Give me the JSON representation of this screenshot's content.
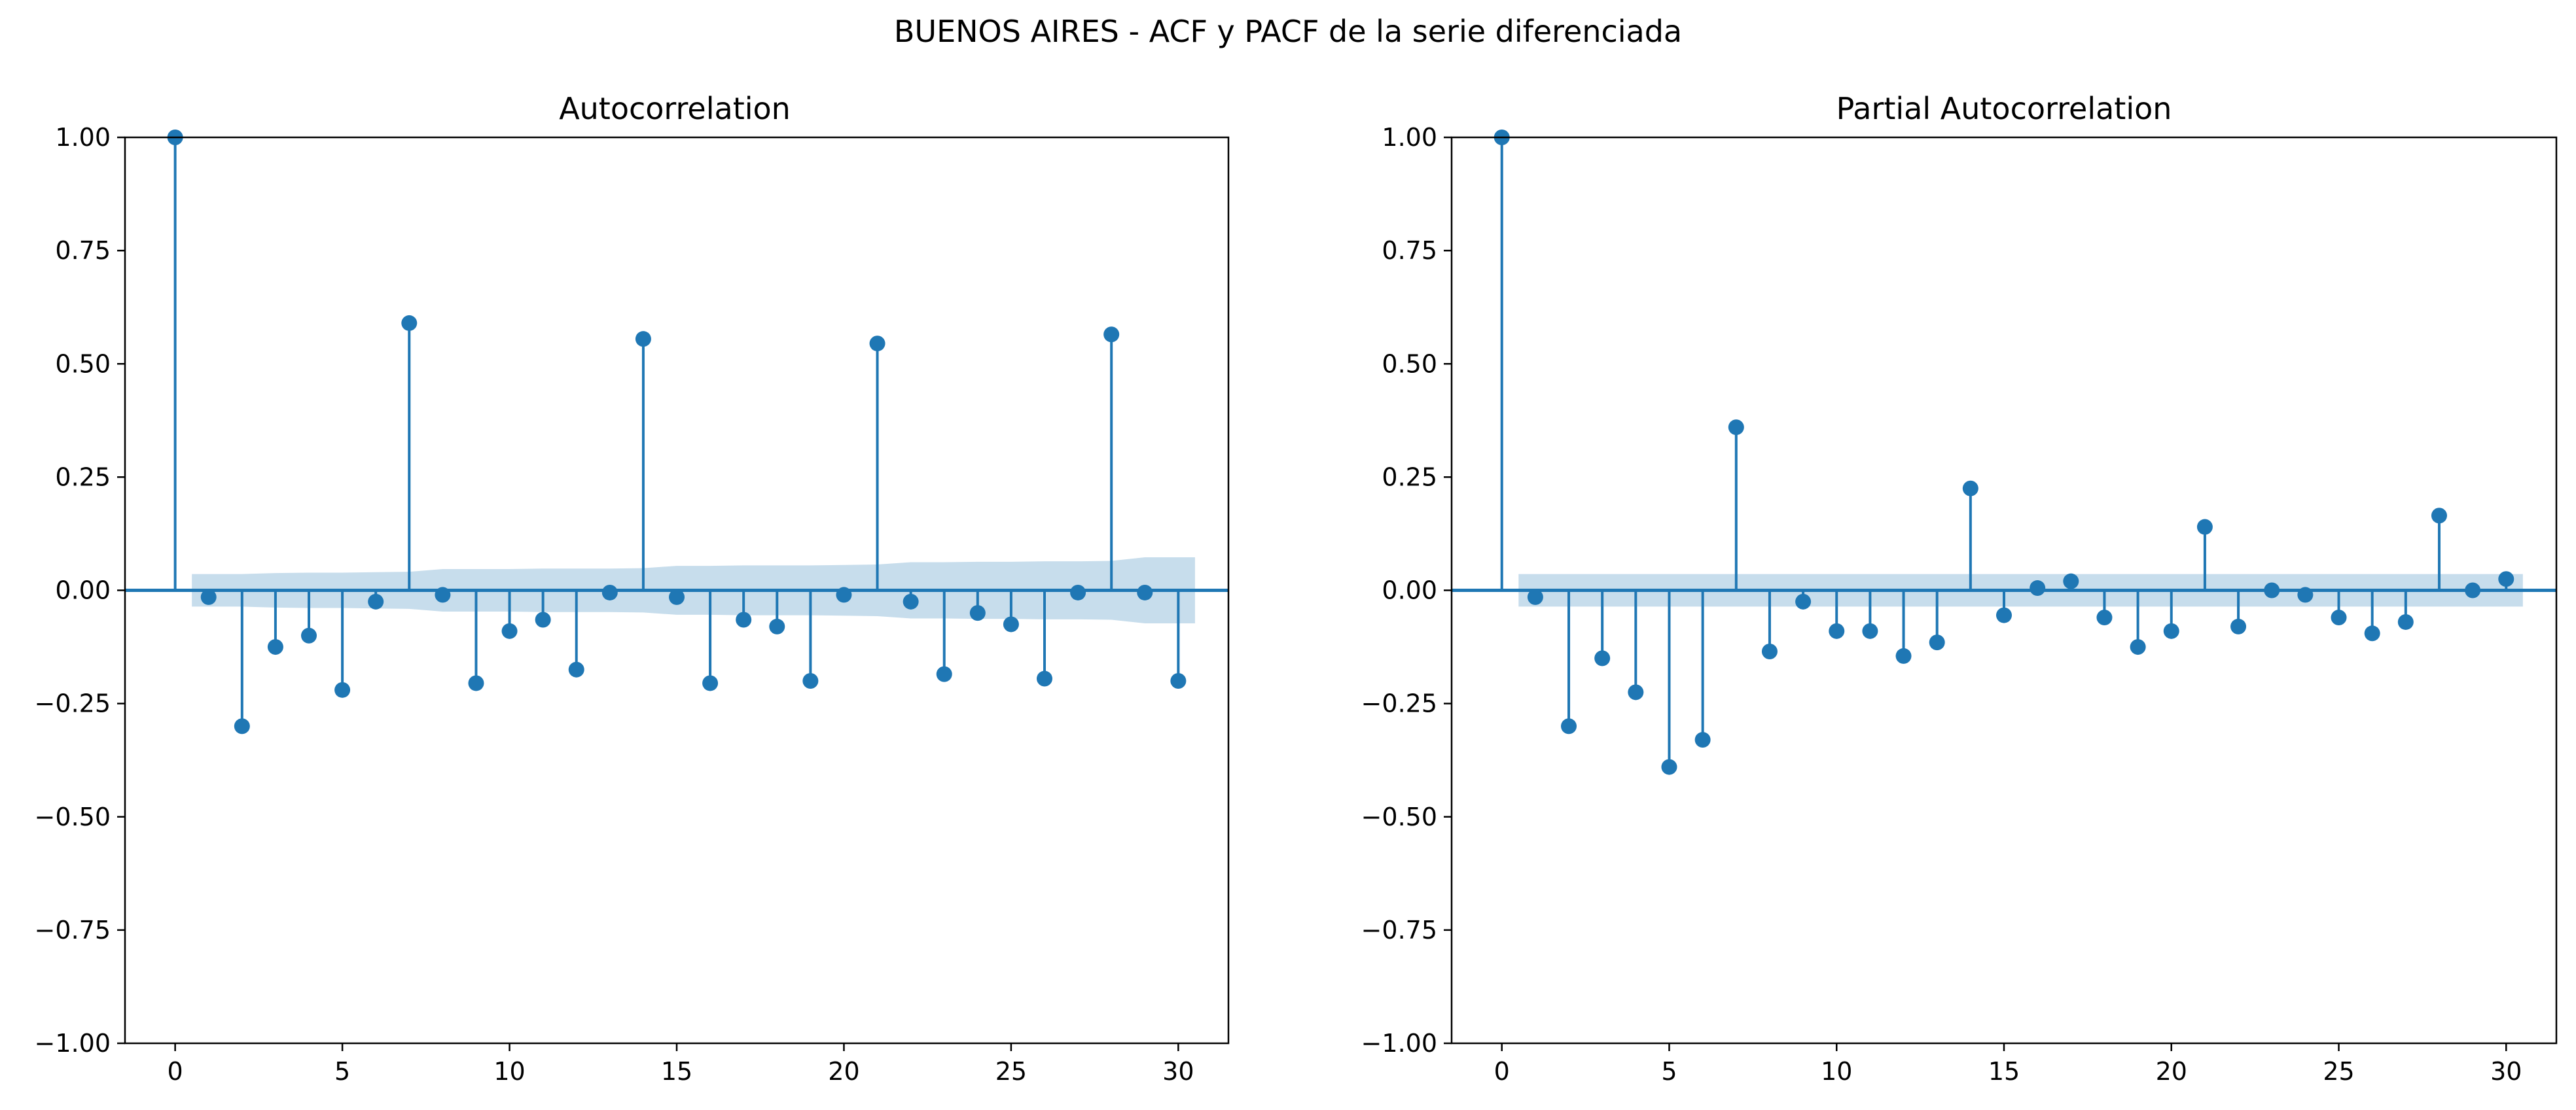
{
  "figure": {
    "suptitle": "BUENOS AIRES - ACF y PACF de la serie diferenciada"
  },
  "colors": {
    "stem": "#1f77b4",
    "confidence_band": "#1f77b4",
    "axes_frame": "#000000",
    "background": "#ffffff"
  },
  "chart_data": [
    {
      "type": "stem",
      "id": "acf",
      "title": "Autocorrelation",
      "xlabel": "",
      "ylabel": "",
      "xlim": [
        -1.5,
        31.5
      ],
      "ylim": [
        -1.0,
        1.0
      ],
      "xticks": [
        0,
        5,
        10,
        15,
        20,
        25,
        30
      ],
      "xtick_labels": [
        "0",
        "5",
        "10",
        "15",
        "20",
        "25",
        "30"
      ],
      "yticks": [
        -1.0,
        -0.75,
        -0.5,
        -0.25,
        0.0,
        0.25,
        0.5,
        0.75,
        1.0
      ],
      "ytick_labels": [
        "−1.00",
        "−0.75",
        "−0.50",
        "−0.25",
        "0.00",
        "0.25",
        "0.50",
        "0.75",
        "1.00"
      ],
      "grid": false,
      "lags": [
        0,
        1,
        2,
        3,
        4,
        5,
        6,
        7,
        8,
        9,
        10,
        11,
        12,
        13,
        14,
        15,
        16,
        17,
        18,
        19,
        20,
        21,
        22,
        23,
        24,
        25,
        26,
        27,
        28,
        29,
        30
      ],
      "values": [
        1.0,
        -0.015,
        -0.3,
        -0.125,
        -0.1,
        -0.22,
        -0.025,
        0.59,
        -0.01,
        -0.205,
        -0.09,
        -0.065,
        -0.175,
        -0.005,
        0.555,
        -0.015,
        -0.205,
        -0.065,
        -0.08,
        -0.2,
        -0.01,
        0.545,
        -0.025,
        -0.185,
        -0.05,
        -0.075,
        -0.195,
        -0.005,
        0.565,
        -0.005,
        -0.2
      ],
      "confidence_band": {
        "lags": [
          0.5,
          1,
          2,
          3,
          4,
          5,
          6,
          7,
          8,
          9,
          10,
          11,
          12,
          13,
          14,
          15,
          16,
          17,
          18,
          19,
          20,
          21,
          22,
          23,
          24,
          25,
          26,
          27,
          28,
          29,
          30,
          30.5
        ],
        "upper": [
          0.036,
          0.036,
          0.036,
          0.038,
          0.039,
          0.039,
          0.04,
          0.041,
          0.047,
          0.047,
          0.047,
          0.048,
          0.048,
          0.048,
          0.049,
          0.054,
          0.054,
          0.055,
          0.055,
          0.055,
          0.056,
          0.057,
          0.062,
          0.062,
          0.063,
          0.063,
          0.064,
          0.064,
          0.065,
          0.073,
          0.073,
          0.073
        ],
        "lower": [
          -0.036,
          -0.036,
          -0.036,
          -0.038,
          -0.039,
          -0.039,
          -0.04,
          -0.041,
          -0.047,
          -0.047,
          -0.047,
          -0.048,
          -0.048,
          -0.048,
          -0.049,
          -0.054,
          -0.054,
          -0.055,
          -0.055,
          -0.055,
          -0.056,
          -0.057,
          -0.062,
          -0.062,
          -0.063,
          -0.063,
          -0.064,
          -0.064,
          -0.065,
          -0.073,
          -0.073,
          -0.073
        ]
      }
    },
    {
      "type": "stem",
      "id": "pacf",
      "title": "Partial Autocorrelation",
      "xlabel": "",
      "ylabel": "",
      "xlim": [
        -1.5,
        31.5
      ],
      "ylim": [
        -1.0,
        1.0
      ],
      "xticks": [
        0,
        5,
        10,
        15,
        20,
        25,
        30
      ],
      "xtick_labels": [
        "0",
        "5",
        "10",
        "15",
        "20",
        "25",
        "30"
      ],
      "yticks": [
        -1.0,
        -0.75,
        -0.5,
        -0.25,
        0.0,
        0.25,
        0.5,
        0.75,
        1.0
      ],
      "ytick_labels": [
        "−1.00",
        "−0.75",
        "−0.50",
        "−0.25",
        "0.00",
        "0.25",
        "0.50",
        "0.75",
        "1.00"
      ],
      "grid": false,
      "lags": [
        0,
        1,
        2,
        3,
        4,
        5,
        6,
        7,
        8,
        9,
        10,
        11,
        12,
        13,
        14,
        15,
        16,
        17,
        18,
        19,
        20,
        21,
        22,
        23,
        24,
        25,
        26,
        27,
        28,
        29,
        30
      ],
      "values": [
        1.0,
        -0.015,
        -0.3,
        -0.15,
        -0.225,
        -0.39,
        -0.33,
        0.36,
        -0.135,
        -0.025,
        -0.09,
        -0.09,
        -0.145,
        -0.115,
        0.225,
        -0.055,
        0.005,
        0.02,
        -0.06,
        -0.125,
        -0.09,
        0.14,
        -0.08,
        0.0,
        -0.01,
        -0.06,
        -0.095,
        -0.07,
        0.165,
        0.0,
        0.025
      ],
      "confidence_band": {
        "lags": [
          0.5,
          30.5
        ],
        "upper": [
          0.036,
          0.036
        ],
        "lower": [
          -0.036,
          -0.036
        ]
      }
    }
  ]
}
